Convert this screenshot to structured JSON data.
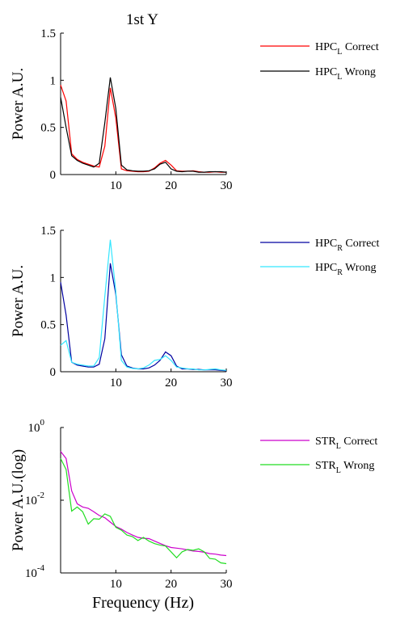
{
  "page": {
    "title": "1st Y",
    "xlabel": "Frequency (Hz)"
  },
  "chart_data": [
    {
      "type": "line",
      "ylabel": "Power A.U.",
      "xlim": [
        0,
        30
      ],
      "ylim": [
        0,
        1.5
      ],
      "yscale": "linear",
      "xticks": [
        "10",
        "20",
        "30"
      ],
      "xtick_values": [
        10,
        20,
        30
      ],
      "yticks": [
        "0",
        "0.5",
        "1",
        "1.5"
      ],
      "ytick_values": [
        0,
        0.5,
        1,
        1.5
      ],
      "legend_position": "right",
      "series": [
        {
          "name": "HPC_L Correct",
          "legend_main": "HPC",
          "legend_sub": "L",
          "legend_suffix": " Correct",
          "color": "#ff0000",
          "x": [
            0,
            1,
            2,
            3,
            4,
            5,
            6,
            7,
            8,
            9,
            10,
            11,
            12,
            13,
            14,
            15,
            16,
            17,
            18,
            19,
            20,
            21,
            22,
            23,
            24,
            25,
            26,
            27,
            28,
            29,
            30
          ],
          "y": [
            0.95,
            0.78,
            0.22,
            0.16,
            0.13,
            0.11,
            0.09,
            0.08,
            0.3,
            0.92,
            0.6,
            0.06,
            0.04,
            0.035,
            0.03,
            0.03,
            0.035,
            0.07,
            0.12,
            0.15,
            0.1,
            0.04,
            0.035,
            0.035,
            0.04,
            0.03,
            0.025,
            0.025,
            0.03,
            0.025,
            0.025
          ]
        },
        {
          "name": "HPC_L Wrong",
          "legend_main": "HPC",
          "legend_sub": "L",
          "legend_suffix": " Wrong",
          "color": "#000000",
          "x": [
            0,
            1,
            2,
            3,
            4,
            5,
            6,
            7,
            8,
            9,
            10,
            11,
            12,
            13,
            14,
            15,
            16,
            17,
            18,
            19,
            20,
            21,
            22,
            23,
            24,
            25,
            26,
            27,
            28,
            29,
            30
          ],
          "y": [
            0.82,
            0.5,
            0.2,
            0.15,
            0.12,
            0.1,
            0.08,
            0.12,
            0.55,
            1.03,
            0.7,
            0.1,
            0.05,
            0.04,
            0.035,
            0.035,
            0.04,
            0.06,
            0.11,
            0.13,
            0.06,
            0.035,
            0.03,
            0.035,
            0.035,
            0.025,
            0.025,
            0.03,
            0.03,
            0.03,
            0.025
          ]
        }
      ]
    },
    {
      "type": "line",
      "ylabel": "Power A.U.",
      "xlim": [
        0,
        30
      ],
      "ylim": [
        0,
        1.5
      ],
      "yscale": "linear",
      "xticks": [
        "10",
        "20",
        "30"
      ],
      "xtick_values": [
        10,
        20,
        30
      ],
      "yticks": [
        "0",
        "0.5",
        "1",
        "1.5"
      ],
      "ytick_values": [
        0,
        0.5,
        1,
        1.5
      ],
      "legend_position": "right",
      "series": [
        {
          "name": "HPC_R Correct",
          "legend_main": "HPC",
          "legend_sub": "R",
          "legend_suffix": " Correct",
          "color": "#0000a0",
          "x": [
            0,
            1,
            2,
            3,
            4,
            5,
            6,
            7,
            8,
            9,
            10,
            11,
            12,
            13,
            14,
            15,
            16,
            17,
            18,
            19,
            20,
            21,
            22,
            23,
            24,
            25,
            26,
            27,
            28,
            29,
            30
          ],
          "y": [
            0.95,
            0.6,
            0.1,
            0.07,
            0.06,
            0.05,
            0.05,
            0.08,
            0.35,
            1.15,
            0.82,
            0.18,
            0.06,
            0.04,
            0.03,
            0.03,
            0.04,
            0.07,
            0.12,
            0.21,
            0.17,
            0.06,
            0.03,
            0.03,
            0.025,
            0.025,
            0.02,
            0.02,
            0.02,
            0.015,
            0.01
          ]
        },
        {
          "name": "HPC_R Wrong",
          "legend_main": "HPC",
          "legend_sub": "R",
          "legend_suffix": " Wrong",
          "color": "#33e6ff",
          "x": [
            0,
            1,
            2,
            3,
            4,
            5,
            6,
            7,
            8,
            9,
            10,
            11,
            12,
            13,
            14,
            15,
            16,
            17,
            18,
            19,
            20,
            21,
            22,
            23,
            24,
            25,
            26,
            27,
            28,
            29,
            30
          ],
          "y": [
            0.28,
            0.33,
            0.1,
            0.08,
            0.07,
            0.06,
            0.06,
            0.15,
            0.8,
            1.4,
            0.85,
            0.12,
            0.05,
            0.035,
            0.03,
            0.04,
            0.07,
            0.12,
            0.13,
            0.17,
            0.12,
            0.05,
            0.04,
            0.03,
            0.03,
            0.02,
            0.02,
            0.025,
            0.03,
            0.02,
            0.015
          ]
        }
      ]
    },
    {
      "type": "line",
      "ylabel": "Power A.U.(log)",
      "xlim": [
        0,
        30
      ],
      "ylim": [
        0.0001,
        1
      ],
      "yscale": "log",
      "xticks": [
        "10",
        "20",
        "30"
      ],
      "xtick_values": [
        10,
        20,
        30
      ],
      "ytick_values": [
        0.0001,
        0.01,
        1
      ],
      "ytick_base": [
        "10",
        "10",
        "10"
      ],
      "ytick_exp": [
        "-4",
        "-2",
        "0"
      ],
      "legend_position": "right",
      "series": [
        {
          "name": "STR_L Correct",
          "legend_main": "STR",
          "legend_sub": "L",
          "legend_suffix": " Correct",
          "color": "#cc00cc",
          "x": [
            0,
            1,
            2,
            3,
            4,
            5,
            6,
            7,
            8,
            9,
            10,
            11,
            12,
            13,
            14,
            15,
            16,
            17,
            18,
            19,
            20,
            21,
            22,
            23,
            24,
            25,
            26,
            27,
            28,
            29,
            30
          ],
          "y": [
            0.22,
            0.14,
            0.018,
            0.008,
            0.0065,
            0.006,
            0.0048,
            0.0038,
            0.0033,
            0.0025,
            0.0019,
            0.0016,
            0.0013,
            0.0011,
            0.00095,
            0.0009,
            0.00088,
            0.00075,
            0.00065,
            0.00056,
            0.0005,
            0.00048,
            0.00046,
            0.00043,
            0.0004,
            0.00039,
            0.00037,
            0.00034,
            0.00033,
            0.00031,
            0.0003
          ]
        },
        {
          "name": "STR_L Wrong",
          "legend_main": "STR",
          "legend_sub": "L",
          "legend_suffix": " Wrong",
          "color": "#22dd22",
          "x": [
            0,
            1,
            2,
            3,
            4,
            5,
            6,
            7,
            8,
            9,
            10,
            11,
            12,
            13,
            14,
            15,
            16,
            17,
            18,
            19,
            20,
            21,
            22,
            23,
            24,
            25,
            26,
            27,
            28,
            29,
            30
          ],
          "y": [
            0.14,
            0.07,
            0.005,
            0.0065,
            0.0048,
            0.0022,
            0.0031,
            0.003,
            0.0042,
            0.0036,
            0.0018,
            0.0015,
            0.0011,
            0.001,
            0.00078,
            0.00095,
            0.00075,
            0.00064,
            0.00058,
            0.00055,
            0.00038,
            0.00026,
            0.00038,
            0.00044,
            0.00042,
            0.00046,
            0.00038,
            0.00025,
            0.00024,
            0.00019,
            0.00018
          ]
        }
      ]
    }
  ]
}
